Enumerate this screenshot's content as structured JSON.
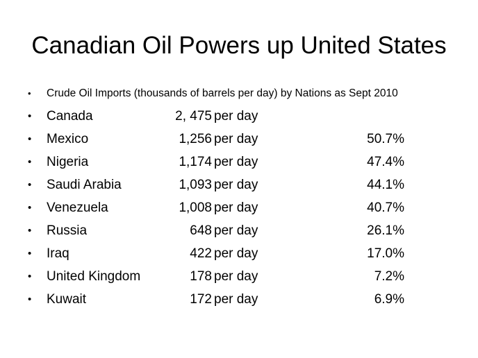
{
  "slide": {
    "title": "Canadian Oil Powers up United States",
    "subtitle": "Crude Oil Imports (thousands of barrels per day) by Nations as Sept 2010",
    "bullet": "•",
    "rows": [
      {
        "country": "Canada",
        "amount": "2, 475",
        "unit": "per day",
        "percent": ""
      },
      {
        "country": "Mexico",
        "amount": "1,256",
        "unit": "per day",
        "percent": "50.7%"
      },
      {
        "country": "Nigeria",
        "amount": "1,174",
        "unit": "per day",
        "percent": "47.4%"
      },
      {
        "country": "Saudi Arabia",
        "amount": "1,093",
        "unit": "per day",
        "percent": "44.1%"
      },
      {
        "country": "Venezuela",
        "amount": "1,008",
        "unit": "per day",
        "percent": "40.7%"
      },
      {
        "country": "Russia",
        "amount": "648",
        "unit": "per day",
        "percent": "26.1%"
      },
      {
        "country": "Iraq",
        "amount": "422",
        "unit": "per day",
        "percent": "17.0%"
      },
      {
        "country": "United Kingdom",
        "amount": "178",
        "unit": "per day",
        "percent": "7.2%"
      },
      {
        "country": "Kuwait",
        "amount": "172",
        "unit": "per day",
        "percent": "6.9%"
      }
    ]
  }
}
